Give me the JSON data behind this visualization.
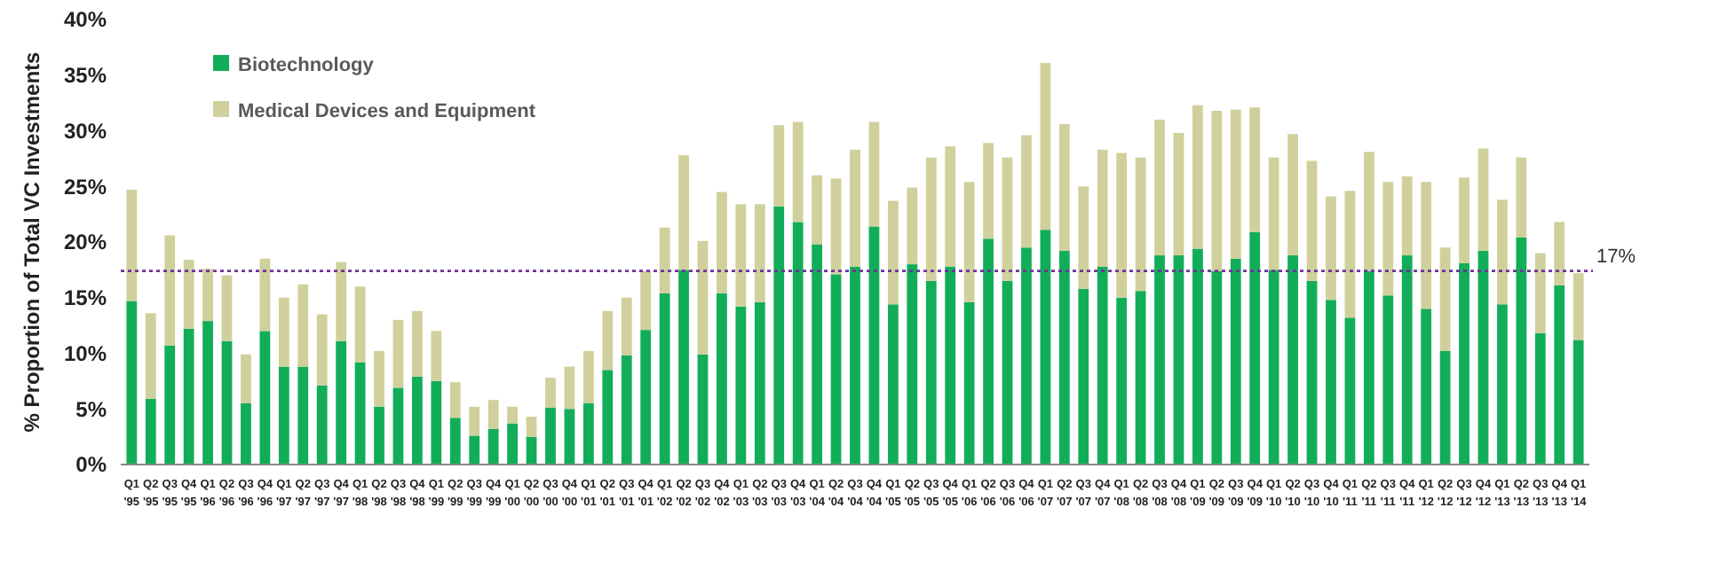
{
  "chart_data": {
    "type": "bar",
    "stacked": true,
    "ylabel": "% Proportion of Total VC Investments",
    "categories": [
      "Q1 '95",
      "Q2 '95",
      "Q3 '95",
      "Q4 '95",
      "Q1 '96",
      "Q2 '96",
      "Q3 '96",
      "Q4 '96",
      "Q1 '97",
      "Q2 '97",
      "Q3 '97",
      "Q4 '97",
      "Q1 '98",
      "Q2 '98",
      "Q3 '98",
      "Q4 '98",
      "Q1 '99",
      "Q2 '99",
      "Q3 '99",
      "Q4 '99",
      "Q1 '00",
      "Q2 '00",
      "Q3 '00",
      "Q4 '00",
      "Q1 '01",
      "Q2 '01",
      "Q3 '01",
      "Q4 '01",
      "Q1 '02",
      "Q2 '02",
      "Q3 '02",
      "Q4 '02",
      "Q1 '03",
      "Q2 '03",
      "Q3 '03",
      "Q4 '03",
      "Q1 '04",
      "Q2 '04",
      "Q3 '04",
      "Q4 '04",
      "Q1 '05",
      "Q2 '05",
      "Q3 '05",
      "Q4 '05",
      "Q1 '06",
      "Q2 '06",
      "Q3 '06",
      "Q4 '06",
      "Q1 '07",
      "Q2 '07",
      "Q3 '07",
      "Q4 '07",
      "Q1 '08",
      "Q2 '08",
      "Q3 '08",
      "Q4 '08",
      "Q1 '09",
      "Q2 '09",
      "Q3 '09",
      "Q4 '09",
      "Q1 '10",
      "Q2 '10",
      "Q3 '10",
      "Q4 '10",
      "Q1 '11",
      "Q2 '11",
      "Q3 '11",
      "Q4 '11",
      "Q1 '12",
      "Q2 '12",
      "Q3 '12",
      "Q4 '12",
      "Q1 '13",
      "Q2 '13",
      "Q3 '13",
      "Q4 '13",
      "Q1 '14"
    ],
    "series": [
      {
        "name": "Biotechnology",
        "color": "#12ad58",
        "values": [
          14.7,
          5.9,
          10.7,
          12.2,
          12.9,
          11.1,
          5.5,
          12.0,
          8.8,
          8.8,
          7.1,
          11.1,
          9.2,
          5.2,
          6.9,
          7.9,
          7.5,
          4.2,
          2.6,
          3.2,
          3.7,
          2.5,
          5.1,
          5.0,
          5.5,
          8.5,
          9.8,
          12.1,
          15.4,
          17.5,
          9.9,
          15.4,
          14.2,
          14.6,
          23.2,
          21.8,
          19.8,
          17.1,
          17.8,
          21.4,
          14.4,
          18.0,
          16.5,
          17.8,
          14.6,
          20.3,
          16.5,
          19.5,
          21.1,
          19.2,
          15.8,
          17.8,
          15.0,
          15.6,
          18.8,
          18.8,
          19.4,
          17.4,
          18.5,
          20.9,
          17.5,
          18.8,
          16.5,
          14.8,
          13.2,
          17.4,
          15.2,
          18.8,
          14.0,
          10.2,
          18.1,
          19.2,
          14.4,
          20.4,
          11.8,
          16.1,
          11.2
        ]
      },
      {
        "name": "Medical Devices and Equipment",
        "color": "#d0d09c",
        "values": [
          10.0,
          7.7,
          9.9,
          6.2,
          4.7,
          5.9,
          4.4,
          6.5,
          6.2,
          7.4,
          6.4,
          7.1,
          6.8,
          5.0,
          6.1,
          5.9,
          4.5,
          3.2,
          2.6,
          2.6,
          1.5,
          1.8,
          2.7,
          3.8,
          4.7,
          5.3,
          5.2,
          5.3,
          5.9,
          10.3,
          10.2,
          9.1,
          9.2,
          8.8,
          7.3,
          9.0,
          6.2,
          8.6,
          10.5,
          9.4,
          9.3,
          6.9,
          11.1,
          10.8,
          10.8,
          8.6,
          11.1,
          10.1,
          15.0,
          11.4,
          9.2,
          10.5,
          13.0,
          12.0,
          12.2,
          11.0,
          12.9,
          14.4,
          13.4,
          11.2,
          10.1,
          10.9,
          10.8,
          9.3,
          11.4,
          10.7,
          10.2,
          7.1,
          11.4,
          9.3,
          7.7,
          9.2,
          9.4,
          7.2,
          7.2,
          5.7,
          6.0
        ]
      }
    ],
    "ylim": [
      0,
      40
    ],
    "yticks": [
      {
        "value": 0,
        "label": "0%"
      },
      {
        "value": 5,
        "label": "5%"
      },
      {
        "value": 10,
        "label": "10%"
      },
      {
        "value": 15,
        "label": "15%"
      },
      {
        "value": 20,
        "label": "20%"
      },
      {
        "value": 25,
        "label": "25%"
      },
      {
        "value": 30,
        "label": "30%"
      },
      {
        "value": 35,
        "label": "35%"
      },
      {
        "value": 40,
        "label": "40%"
      }
    ],
    "ref_lines": [
      {
        "axis": "y",
        "value": 17.4,
        "label": "17%",
        "color": "#7030a0",
        "line_style": "dotted"
      }
    ],
    "grid": false,
    "legend": "top left"
  }
}
